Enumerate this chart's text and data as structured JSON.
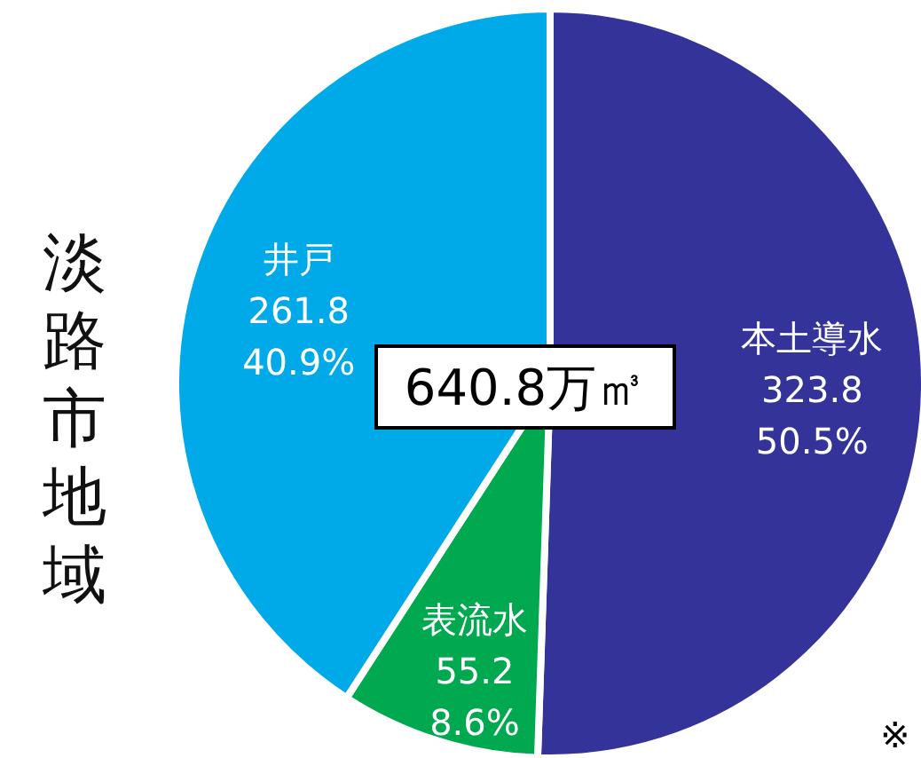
{
  "chart_data": {
    "type": "pie",
    "title": "淡路市地域",
    "categories": [
      "本土導水",
      "表流水",
      "井戸"
    ],
    "values": [
      323.8,
      55.2,
      261.8
    ],
    "value_labels": [
      "323.8\n50.5%",
      "55.2\n8.6%",
      "261.8\n40.9%"
    ],
    "colors": [
      "#333399",
      "#00a84f",
      "#00a9e8"
    ],
    "annotations": [
      "640.8万㎥",
      "※"
    ]
  }
}
